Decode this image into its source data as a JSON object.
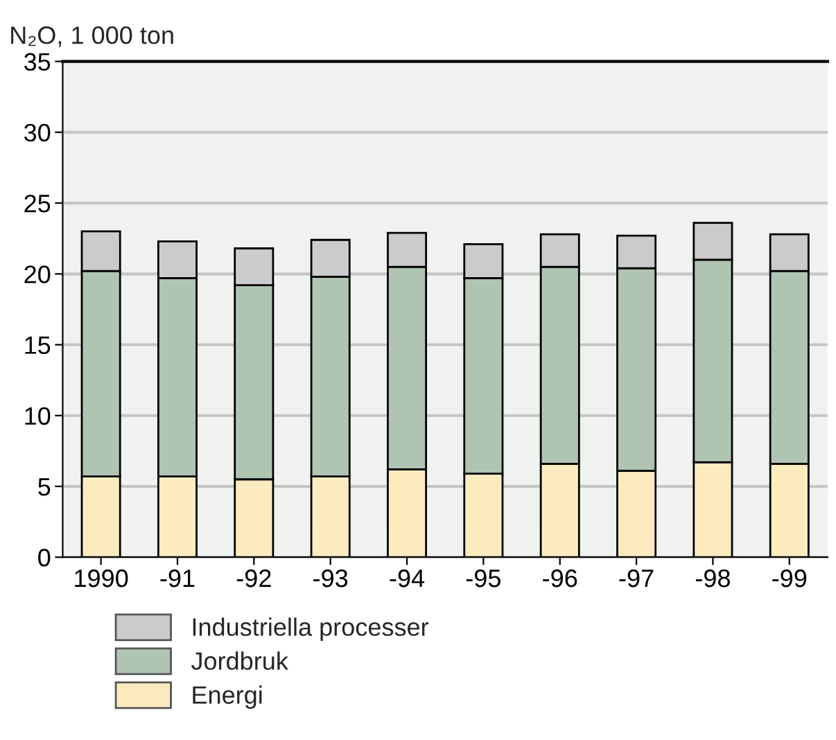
{
  "chart_data": {
    "type": "bar",
    "stacked": true,
    "ylabel": "N₂O, 1 000 ton",
    "categories": [
      "1990",
      "-91",
      "-92",
      "-93",
      "-94",
      "-95",
      "-96",
      "-97",
      "-98",
      "-99"
    ],
    "series": [
      {
        "name": "Energi",
        "color": "#fdebc0",
        "values": [
          5.7,
          5.7,
          5.5,
          5.7,
          6.2,
          5.9,
          6.6,
          6.1,
          6.7,
          6.6
        ]
      },
      {
        "name": "Jordbruk",
        "color": "#b0c4b4",
        "values": [
          14.5,
          14.0,
          13.7,
          14.1,
          14.3,
          13.8,
          13.9,
          14.3,
          14.3,
          13.6
        ]
      },
      {
        "name": "Industriella processer",
        "color": "#cbcbcb",
        "values": [
          2.8,
          2.6,
          2.6,
          2.6,
          2.4,
          2.4,
          2.3,
          2.3,
          2.6,
          2.6
        ]
      }
    ],
    "ylim": [
      0,
      35
    ],
    "yticks": [
      0,
      5,
      10,
      15,
      20,
      25,
      30,
      35
    ],
    "grid": "y",
    "legend": "bottom"
  }
}
